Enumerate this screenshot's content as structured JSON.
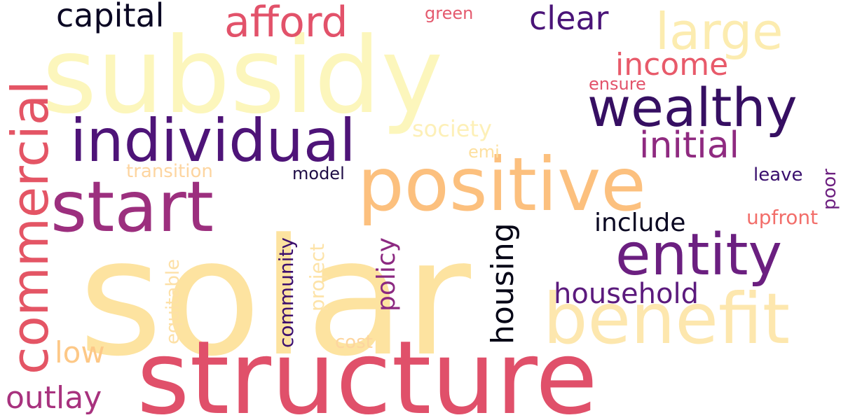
{
  "words": [
    {
      "text": "solar",
      "color": "#fde3a0"
    },
    {
      "text": "subsidy",
      "color": "#fcf6bc"
    },
    {
      "text": "structure",
      "color": "#e0506a"
    },
    {
      "text": "positive",
      "color": "#fcc07e"
    },
    {
      "text": "benefit",
      "color": "#fde7ae"
    },
    {
      "text": "individual",
      "color": "#4e1478"
    },
    {
      "text": "start",
      "color": "#9c2f7e"
    },
    {
      "text": "commercial",
      "color": "#e45565"
    },
    {
      "text": "entity",
      "color": "#6b1f80"
    },
    {
      "text": "wealthy",
      "color": "#360f62"
    },
    {
      "text": "large",
      "color": "#fcecb0"
    },
    {
      "text": "afford",
      "color": "#e2526a"
    },
    {
      "text": "capital",
      "color": "#0b0824"
    },
    {
      "text": "clear",
      "color": "#4a1478"
    },
    {
      "text": "income",
      "color": "#e85a6a"
    },
    {
      "text": "initial",
      "color": "#8f2a80"
    },
    {
      "text": "household",
      "color": "#5b1a7d"
    },
    {
      "text": "housing",
      "color": "#060616"
    },
    {
      "text": "include",
      "color": "#0a0822"
    },
    {
      "text": "outlay",
      "color": "#a8327e"
    },
    {
      "text": "low",
      "color": "#fdc887"
    },
    {
      "text": "policy",
      "color": "#8c2981"
    },
    {
      "text": "community",
      "color": "#3c0f6e"
    },
    {
      "text": "project",
      "color": "#fde3a8"
    },
    {
      "text": "equitable",
      "color": "#fde0a6"
    },
    {
      "text": "society",
      "color": "#fdf0b8"
    },
    {
      "text": "transition",
      "color": "#fdd5a0"
    },
    {
      "text": "model",
      "color": "#1e0c45"
    },
    {
      "text": "emi",
      "color": "#fde0a0"
    },
    {
      "text": "ensure",
      "color": "#e2526a"
    },
    {
      "text": "green",
      "color": "#e45a6e"
    },
    {
      "text": "leave",
      "color": "#3a0f6e"
    },
    {
      "text": "poor",
      "color": "#6d2080"
    },
    {
      "text": "upfront",
      "color": "#f26e6a"
    },
    {
      "text": "cost",
      "color": "#fdd59e"
    }
  ]
}
